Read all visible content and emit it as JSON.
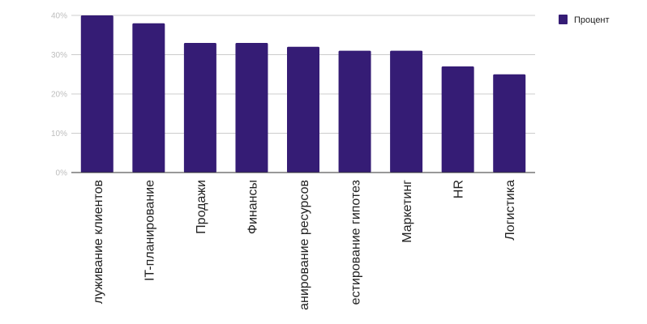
{
  "chart_data": {
    "type": "bar",
    "categories": [
      "луживание клиентов",
      "IT-планирование",
      "Продажи",
      "Финансы",
      "анирование ресурсов",
      "естирование гипотез",
      "Маркетинг",
      "HR",
      "Логистика"
    ],
    "series": [
      {
        "name": "Процент",
        "values": [
          40,
          38,
          33,
          33,
          32,
          31,
          31,
          27,
          25
        ],
        "color": "#351c75"
      }
    ],
    "yticks": [
      "0%",
      "10%",
      "20%",
      "30%",
      "40%"
    ],
    "ylim": [
      0,
      40
    ],
    "grid": true,
    "legend": "top-right",
    "title": "",
    "xlabel": "",
    "ylabel": ""
  }
}
